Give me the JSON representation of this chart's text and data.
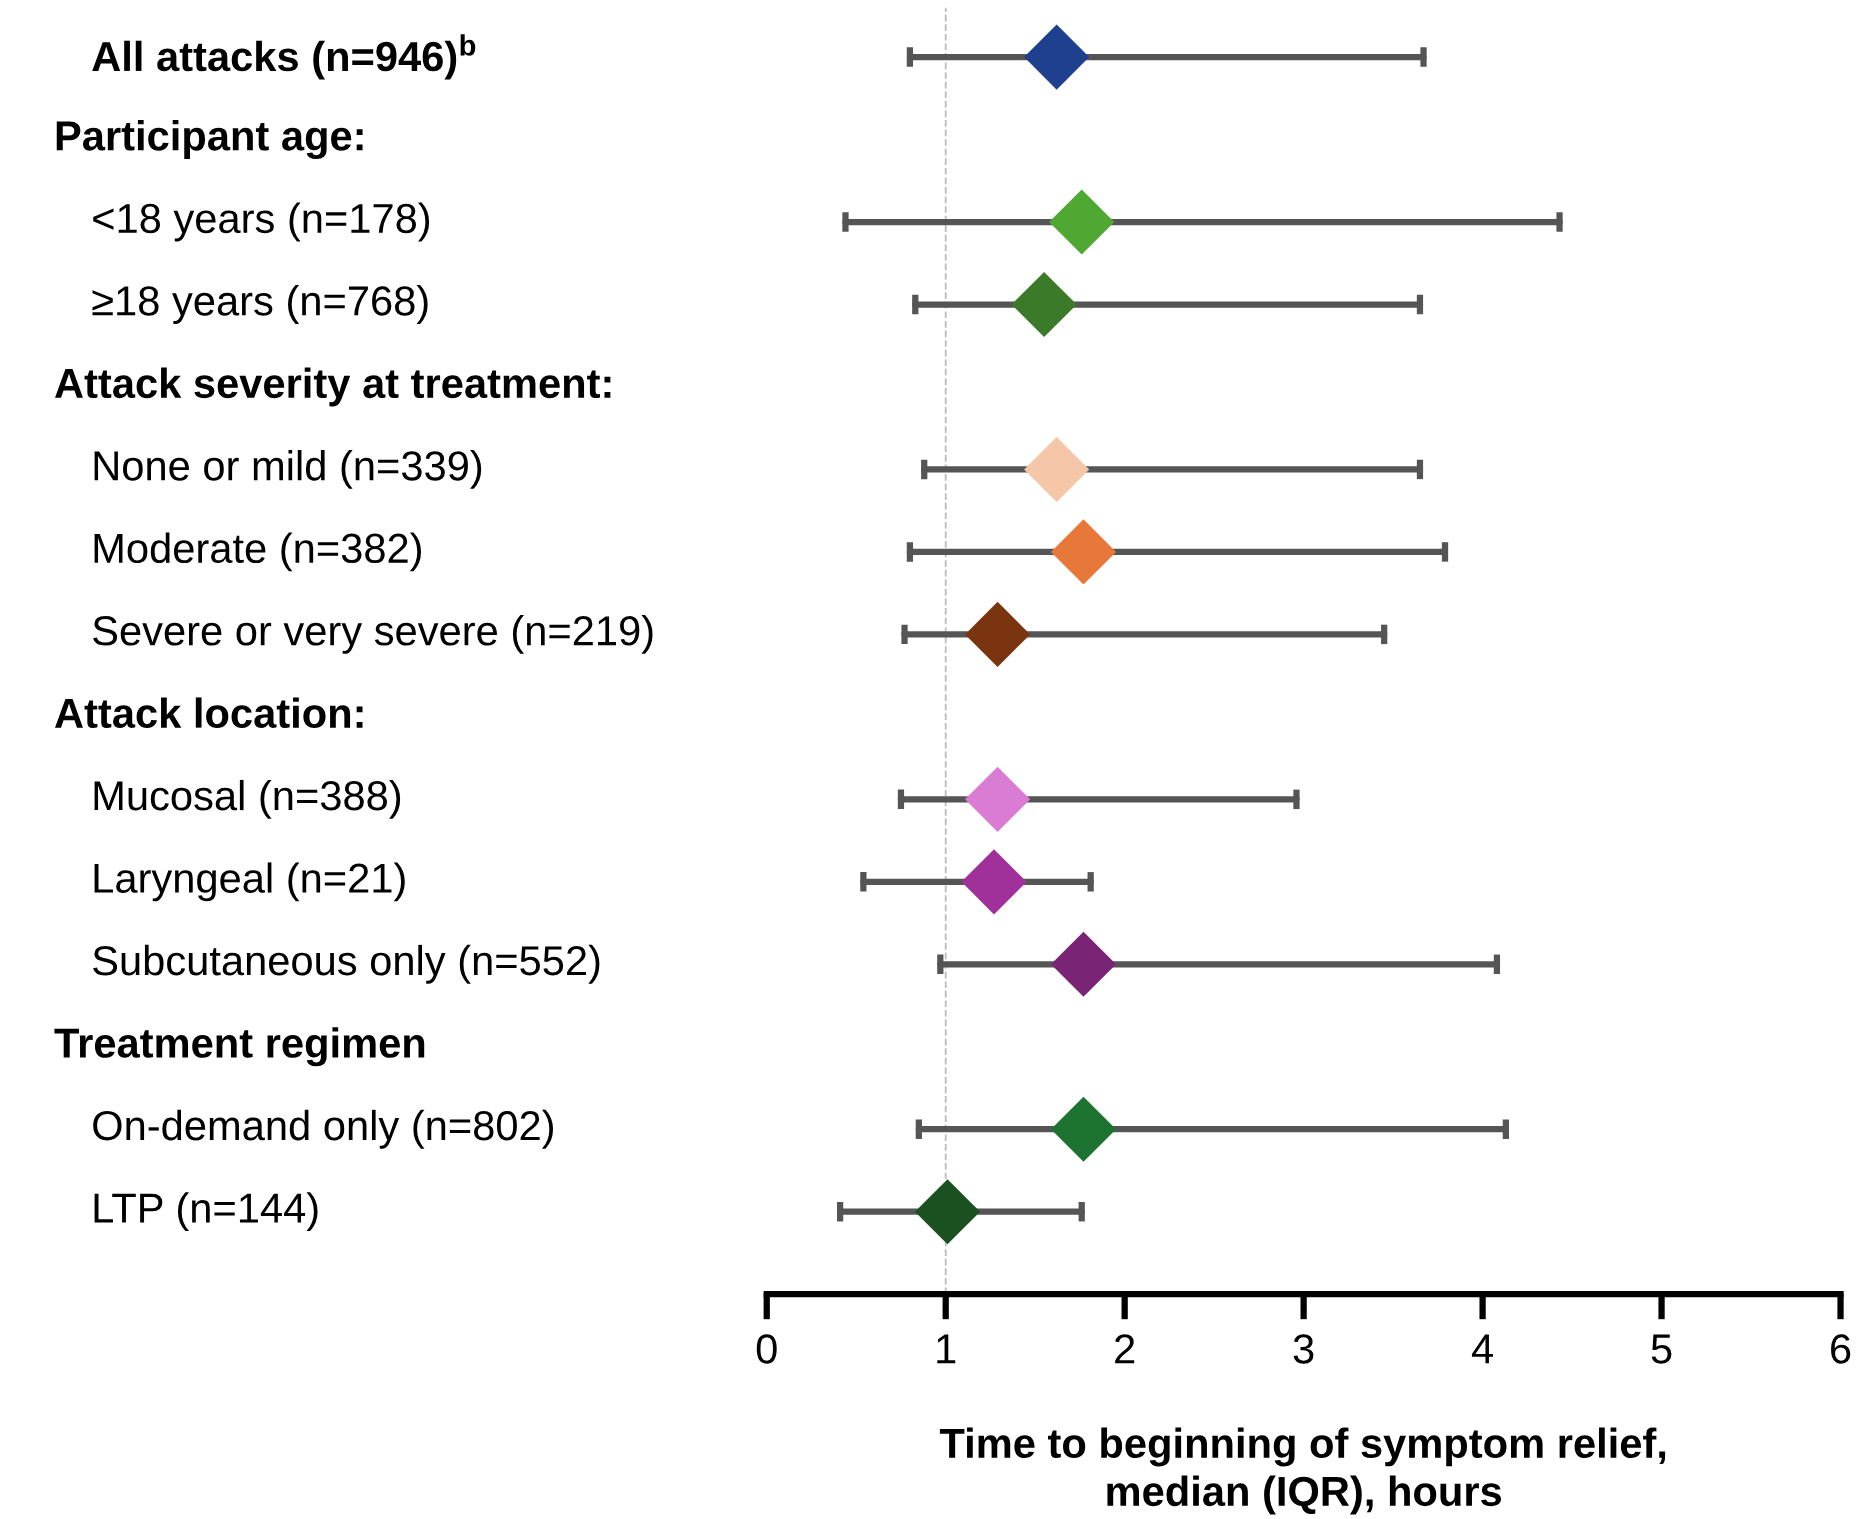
{
  "chart_data": {
    "type": "scatter",
    "orientation": "horizontal",
    "categories": [
      "All attacks (n=946)$^{b}$",
      null,
      "<18 years (n=178)",
      "≥18 years (n=768)",
      null,
      "None or mild (n=339)",
      "Moderate (n=382)",
      "Severe or very severe (n=219)",
      null,
      "Mucosal (n=388)",
      "Laryngeal (n=21)",
      "Subcutaneous only (n=552)",
      null,
      "On-demand only (n=802)",
      "LTP (n=144)"
    ],
    "annotations": [
      "Participant age:",
      "Attack severity at treatment:",
      "Attack location:",
      "Treatment regimen"
    ],
    "values": [
      1.62,
      null,
      1.76,
      1.55,
      null,
      1.62,
      1.77,
      1.29,
      null,
      1.29,
      1.27,
      1.77,
      null,
      1.77,
      1.01
    ],
    "errors": [
      [
        0.8,
        3.67
      ],
      null,
      [
        0.44,
        4.43
      ],
      [
        0.83,
        3.65
      ],
      null,
      [
        0.88,
        3.65
      ],
      [
        0.8,
        3.79
      ],
      [
        0.77,
        3.45
      ],
      null,
      [
        0.75,
        2.96
      ],
      [
        0.54,
        1.81
      ],
      [
        0.97,
        4.08
      ],
      null,
      [
        0.85,
        4.13
      ],
      [
        0.41,
        1.76
      ]
    ],
    "colors": [
      "#1f3f8f",
      null,
      "#4fa832",
      "#3a7a28",
      null,
      "#f5c6a8",
      "#e8773a",
      "#7a3410",
      null,
      "#da7bd4",
      "#a0319a",
      "#7a2475",
      null,
      "#1d7430",
      "#1b5020"
    ],
    "marker": "diamond",
    "xlabel": "Time to beginning of symptom relief,\nmedian (IQR), hours",
    "xlim": [
      0,
      6
    ],
    "xticks": [
      0,
      1,
      2,
      3,
      4,
      5,
      6
    ],
    "ref_lines": [
      {
        "axis": "x",
        "value": 1,
        "color": "#bbbbbb",
        "line_style": "dashed"
      }
    ],
    "grid": false,
    "legend": false
  }
}
